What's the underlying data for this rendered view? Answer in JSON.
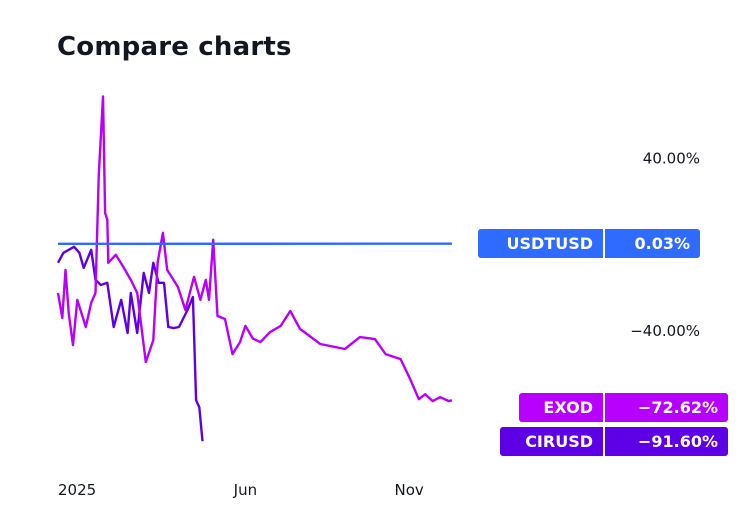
{
  "chart_data": {
    "type": "line",
    "title": "Compare charts",
    "xlabel": "",
    "ylabel": "",
    "x_range": [
      "2024-12-08",
      "2025-12-11"
    ],
    "ylim": [
      -98,
      76
    ],
    "y_ticks": [
      {
        "value": 40,
        "label": "40.00%"
      },
      {
        "value": -40,
        "label": "−40.00%"
      }
    ],
    "x_ticks": [
      {
        "date": "2025-01-01",
        "label": "2025"
      },
      {
        "date": "2025-06-01",
        "label": "Jun"
      },
      {
        "date": "2025-11-01",
        "label": "Nov"
      }
    ],
    "grid": false,
    "series": [
      {
        "name": "USDTUSD",
        "last_label": "0.03%",
        "color": "#2f6bff",
        "points": [
          [
            "2024-12-08",
            0
          ],
          [
            "2025-12-11",
            0.03
          ]
        ]
      },
      {
        "name": "EXOD",
        "last_label": "−72.62%",
        "color": "#b800ff",
        "points": [
          [
            "2024-12-08",
            -22.8
          ],
          [
            "2024-12-12",
            -34.4
          ],
          [
            "2024-12-15",
            -12.1
          ],
          [
            "2024-12-18",
            -32.1
          ],
          [
            "2024-12-22",
            -47
          ],
          [
            "2024-12-26",
            -26
          ],
          [
            "2025-01-03",
            -38.6
          ],
          [
            "2025-01-08",
            -27.4
          ],
          [
            "2025-01-12",
            -22.8
          ],
          [
            "2025-01-15",
            31.2
          ],
          [
            "2025-01-19",
            68.4
          ],
          [
            "2025-01-21",
            14.4
          ],
          [
            "2025-01-23",
            11.2
          ],
          [
            "2025-01-24",
            -8.8
          ],
          [
            "2025-01-31",
            -5.1
          ],
          [
            "2025-02-07",
            -10.7
          ],
          [
            "2025-02-14",
            -16.7
          ],
          [
            "2025-02-20",
            -22.8
          ],
          [
            "2025-02-28",
            -54.9
          ],
          [
            "2025-03-07",
            -44.7
          ],
          [
            "2025-03-11",
            -8.8
          ],
          [
            "2025-03-16",
            5.1
          ],
          [
            "2025-03-20",
            -12.1
          ],
          [
            "2025-03-30",
            -20
          ],
          [
            "2025-04-06",
            -30.7
          ],
          [
            "2025-04-14",
            -15.3
          ],
          [
            "2025-04-20",
            -26
          ],
          [
            "2025-04-25",
            -16.7
          ],
          [
            "2025-04-28",
            -26
          ],
          [
            "2025-05-02",
            1.9
          ],
          [
            "2025-05-06",
            -33.5
          ],
          [
            "2025-05-13",
            -34.9
          ],
          [
            "2025-05-20",
            -51.2
          ],
          [
            "2025-05-27",
            -45.6
          ],
          [
            "2025-06-01",
            -38.1
          ],
          [
            "2025-06-08",
            -44
          ],
          [
            "2025-06-15",
            -45.6
          ],
          [
            "2025-06-24",
            -41
          ],
          [
            "2025-07-04",
            -38.1
          ],
          [
            "2025-07-13",
            -31.2
          ],
          [
            "2025-07-22",
            -39.5
          ],
          [
            "2025-08-10",
            -46.5
          ],
          [
            "2025-09-02",
            -48.8
          ],
          [
            "2025-09-16",
            -43.3
          ],
          [
            "2025-09-30",
            -44.2
          ],
          [
            "2025-10-10",
            -51.2
          ],
          [
            "2025-10-24",
            -53.5
          ],
          [
            "2025-11-02",
            -62.8
          ],
          [
            "2025-11-10",
            -72.1
          ],
          [
            "2025-11-16",
            -69.8
          ],
          [
            "2025-11-23",
            -73
          ],
          [
            "2025-11-30",
            -71.2
          ],
          [
            "2025-12-08",
            -73
          ],
          [
            "2025-12-11",
            -72.62
          ]
        ]
      },
      {
        "name": "CIRUSD",
        "last_label": "−91.60%",
        "color": "#5e00e6",
        "points": [
          [
            "2024-12-08",
            -8.8
          ],
          [
            "2024-12-13",
            -4.2
          ],
          [
            "2024-12-23",
            -1.4
          ],
          [
            "2024-12-28",
            -4.2
          ],
          [
            "2025-01-01",
            -11.2
          ],
          [
            "2025-01-08",
            -2.8
          ],
          [
            "2025-01-12",
            -16.7
          ],
          [
            "2025-01-17",
            -19.1
          ],
          [
            "2025-01-23",
            -18.1
          ],
          [
            "2025-01-29",
            -38.6
          ],
          [
            "2025-02-05",
            -26
          ],
          [
            "2025-02-11",
            -41.4
          ],
          [
            "2025-02-14",
            -22.8
          ],
          [
            "2025-02-20",
            -41.4
          ],
          [
            "2025-02-26",
            -13.5
          ],
          [
            "2025-03-03",
            -22.8
          ],
          [
            "2025-03-07",
            -8.8
          ],
          [
            "2025-03-12",
            -18.1
          ],
          [
            "2025-03-17",
            -18.1
          ],
          [
            "2025-03-21",
            -38.6
          ],
          [
            "2025-03-26",
            -39.1
          ],
          [
            "2025-03-31",
            -38.6
          ],
          [
            "2025-04-08",
            -30.7
          ],
          [
            "2025-04-13",
            -24.7
          ],
          [
            "2025-04-16",
            -72.6
          ],
          [
            "2025-04-19",
            -75.8
          ],
          [
            "2025-04-22",
            -91.6
          ]
        ]
      }
    ]
  }
}
